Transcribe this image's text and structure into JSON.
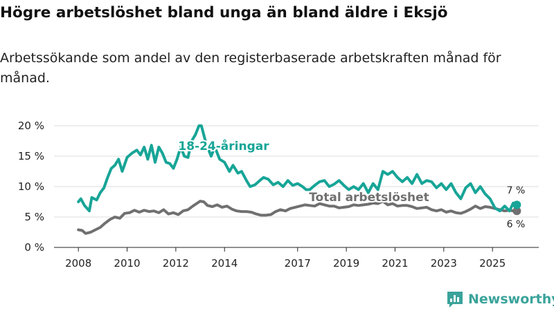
{
  "title": "Högre arbetslöshet bland unga än bland äldre i Eksjö",
  "subtitle": "Arbetssökande som andel av den registerbaserade arbetskraften månad för månad.",
  "logo": {
    "text": "Newsworthy",
    "icon": "bar-chart-logo-icon"
  },
  "colors": {
    "youth": "#17a597",
    "total": "#707070",
    "grid": "#dddddd",
    "axis": "#222222"
  },
  "chart_data": {
    "type": "line",
    "title": "Högre arbetslöshet bland unga än bland äldre i Eksjö",
    "xlabel": "",
    "ylabel": "",
    "ylim": [
      0,
      20
    ],
    "xlim": [
      2008.0,
      2026.0
    ],
    "y_ticks": [
      0,
      5,
      10,
      15,
      20
    ],
    "y_tick_labels": [
      "0 %",
      "5 %",
      "10 %",
      "15 %",
      "20 %"
    ],
    "x_ticks": [
      2008,
      2010,
      2012,
      2014,
      2017,
      2019,
      2021,
      2023,
      2025
    ],
    "x_tick_labels": [
      "2008",
      "2010",
      "2012",
      "2014",
      "2017",
      "2019",
      "2021",
      "2023",
      "2025"
    ],
    "grid": true,
    "series": [
      {
        "name": "18-24-åringar",
        "end_label": "7 %",
        "points": [
          [
            2008.0,
            7.5
          ],
          [
            2008.1,
            8.0
          ],
          [
            2008.25,
            6.9
          ],
          [
            2008.45,
            6.0
          ],
          [
            2008.55,
            8.2
          ],
          [
            2008.75,
            7.8
          ],
          [
            2008.9,
            9.0
          ],
          [
            2009.05,
            9.8
          ],
          [
            2009.2,
            11.5
          ],
          [
            2009.35,
            13.0
          ],
          [
            2009.5,
            13.5
          ],
          [
            2009.65,
            14.5
          ],
          [
            2009.8,
            12.5
          ],
          [
            2010.0,
            14.8
          ],
          [
            2010.2,
            15.5
          ],
          [
            2010.4,
            16.0
          ],
          [
            2010.55,
            15.2
          ],
          [
            2010.7,
            16.5
          ],
          [
            2010.85,
            14.5
          ],
          [
            2011.0,
            16.8
          ],
          [
            2011.15,
            14.0
          ],
          [
            2011.3,
            16.5
          ],
          [
            2011.45,
            15.5
          ],
          [
            2011.6,
            14.0
          ],
          [
            2011.75,
            13.8
          ],
          [
            2011.9,
            13.0
          ],
          [
            2012.05,
            14.5
          ],
          [
            2012.2,
            16.5
          ],
          [
            2012.35,
            15.0
          ],
          [
            2012.5,
            14.8
          ],
          [
            2012.65,
            17.5
          ],
          [
            2012.8,
            18.5
          ],
          [
            2012.95,
            20.0
          ],
          [
            2013.05,
            20.0
          ],
          [
            2013.15,
            18.5
          ],
          [
            2013.25,
            17.0
          ],
          [
            2013.45,
            15.0
          ],
          [
            2013.6,
            16.5
          ],
          [
            2013.8,
            14.5
          ],
          [
            2014.0,
            14.0
          ],
          [
            2014.2,
            12.5
          ],
          [
            2014.35,
            13.5
          ],
          [
            2014.55,
            12.2
          ],
          [
            2014.7,
            12.5
          ],
          [
            2014.9,
            11.0
          ],
          [
            2015.05,
            10.0
          ],
          [
            2015.25,
            10.3
          ],
          [
            2015.45,
            11.0
          ],
          [
            2015.6,
            11.5
          ],
          [
            2015.8,
            11.2
          ],
          [
            2016.0,
            10.3
          ],
          [
            2016.2,
            10.7
          ],
          [
            2016.4,
            10.0
          ],
          [
            2016.6,
            11.0
          ],
          [
            2016.8,
            10.2
          ],
          [
            2017.0,
            10.5
          ],
          [
            2017.2,
            10.0
          ],
          [
            2017.35,
            9.5
          ],
          [
            2017.5,
            9.5
          ],
          [
            2017.7,
            10.2
          ],
          [
            2017.9,
            10.8
          ],
          [
            2018.1,
            11.0
          ],
          [
            2018.3,
            10.0
          ],
          [
            2018.5,
            10.4
          ],
          [
            2018.7,
            11.0
          ],
          [
            2018.9,
            10.2
          ],
          [
            2019.1,
            9.5
          ],
          [
            2019.3,
            10.0
          ],
          [
            2019.5,
            9.5
          ],
          [
            2019.7,
            10.5
          ],
          [
            2019.9,
            9.0
          ],
          [
            2020.1,
            10.5
          ],
          [
            2020.3,
            9.5
          ],
          [
            2020.5,
            12.5
          ],
          [
            2020.7,
            12.0
          ],
          [
            2020.9,
            12.5
          ],
          [
            2021.1,
            11.5
          ],
          [
            2021.3,
            10.8
          ],
          [
            2021.5,
            11.5
          ],
          [
            2021.7,
            10.5
          ],
          [
            2021.9,
            12.0
          ],
          [
            2022.1,
            10.5
          ],
          [
            2022.3,
            11.0
          ],
          [
            2022.5,
            10.8
          ],
          [
            2022.7,
            9.8
          ],
          [
            2022.9,
            10.5
          ],
          [
            2023.1,
            9.5
          ],
          [
            2023.3,
            10.5
          ],
          [
            2023.5,
            9.0
          ],
          [
            2023.7,
            8.0
          ],
          [
            2023.9,
            9.8
          ],
          [
            2024.1,
            10.5
          ],
          [
            2024.3,
            9.0
          ],
          [
            2024.5,
            10.0
          ],
          [
            2024.7,
            8.8
          ],
          [
            2024.9,
            8.0
          ],
          [
            2025.1,
            6.5
          ],
          [
            2025.3,
            6.0
          ],
          [
            2025.5,
            6.8
          ],
          [
            2025.7,
            6.0
          ],
          [
            2025.85,
            7.3
          ],
          [
            2026.0,
            7.0
          ]
        ]
      },
      {
        "name": "Total arbetslöshet",
        "end_label": "6 %",
        "points": [
          [
            2008.0,
            2.9
          ],
          [
            2008.15,
            2.8
          ],
          [
            2008.3,
            2.3
          ],
          [
            2008.5,
            2.5
          ],
          [
            2008.7,
            2.9
          ],
          [
            2008.9,
            3.3
          ],
          [
            2009.1,
            4.0
          ],
          [
            2009.3,
            4.6
          ],
          [
            2009.5,
            5.0
          ],
          [
            2009.7,
            4.8
          ],
          [
            2009.9,
            5.6
          ],
          [
            2010.1,
            5.7
          ],
          [
            2010.3,
            6.1
          ],
          [
            2010.5,
            5.8
          ],
          [
            2010.7,
            6.1
          ],
          [
            2010.9,
            5.9
          ],
          [
            2011.1,
            6.0
          ],
          [
            2011.3,
            5.7
          ],
          [
            2011.5,
            6.2
          ],
          [
            2011.7,
            5.5
          ],
          [
            2011.9,
            5.7
          ],
          [
            2012.1,
            5.4
          ],
          [
            2012.3,
            6.0
          ],
          [
            2012.5,
            6.2
          ],
          [
            2012.7,
            6.8
          ],
          [
            2012.85,
            7.2
          ],
          [
            2013.0,
            7.6
          ],
          [
            2013.15,
            7.5
          ],
          [
            2013.3,
            6.9
          ],
          [
            2013.5,
            6.7
          ],
          [
            2013.7,
            7.0
          ],
          [
            2013.9,
            6.6
          ],
          [
            2014.1,
            6.8
          ],
          [
            2014.3,
            6.3
          ],
          [
            2014.5,
            6.0
          ],
          [
            2014.7,
            5.9
          ],
          [
            2014.9,
            5.9
          ],
          [
            2015.1,
            5.8
          ],
          [
            2015.3,
            5.5
          ],
          [
            2015.5,
            5.3
          ],
          [
            2015.7,
            5.3
          ],
          [
            2015.9,
            5.4
          ],
          [
            2016.1,
            5.9
          ],
          [
            2016.3,
            6.2
          ],
          [
            2016.5,
            6.0
          ],
          [
            2016.7,
            6.4
          ],
          [
            2016.9,
            6.6
          ],
          [
            2017.1,
            6.8
          ],
          [
            2017.3,
            7.0
          ],
          [
            2017.5,
            6.9
          ],
          [
            2017.7,
            6.8
          ],
          [
            2017.9,
            7.2
          ],
          [
            2018.1,
            7.0
          ],
          [
            2018.3,
            6.8
          ],
          [
            2018.5,
            6.8
          ],
          [
            2018.7,
            6.5
          ],
          [
            2018.9,
            6.6
          ],
          [
            2019.1,
            6.7
          ],
          [
            2019.3,
            7.0
          ],
          [
            2019.5,
            6.9
          ],
          [
            2019.7,
            7.0
          ],
          [
            2019.9,
            7.1
          ],
          [
            2020.1,
            7.3
          ],
          [
            2020.3,
            7.2
          ],
          [
            2020.5,
            7.6
          ],
          [
            2020.7,
            7.0
          ],
          [
            2020.9,
            7.2
          ],
          [
            2021.1,
            6.8
          ],
          [
            2021.3,
            6.9
          ],
          [
            2021.5,
            6.9
          ],
          [
            2021.7,
            6.7
          ],
          [
            2021.9,
            6.4
          ],
          [
            2022.1,
            6.5
          ],
          [
            2022.3,
            6.6
          ],
          [
            2022.5,
            6.2
          ],
          [
            2022.7,
            6.0
          ],
          [
            2022.9,
            6.2
          ],
          [
            2023.1,
            5.8
          ],
          [
            2023.3,
            6.0
          ],
          [
            2023.5,
            5.7
          ],
          [
            2023.7,
            5.6
          ],
          [
            2023.9,
            5.9
          ],
          [
            2024.1,
            6.3
          ],
          [
            2024.3,
            6.8
          ],
          [
            2024.5,
            6.4
          ],
          [
            2024.7,
            6.7
          ],
          [
            2024.9,
            6.6
          ],
          [
            2025.1,
            6.4
          ],
          [
            2025.3,
            6.2
          ],
          [
            2025.5,
            6.0
          ],
          [
            2025.7,
            6.1
          ],
          [
            2025.85,
            6.0
          ],
          [
            2026.0,
            6.0
          ]
        ]
      }
    ]
  }
}
